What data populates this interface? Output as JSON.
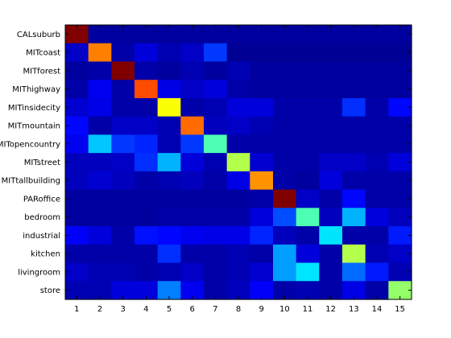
{
  "chart_data": {
    "type": "heatmap",
    "rows": [
      "CALsuburb",
      "MITcoast",
      "MITforest",
      "MIThighway",
      "MITinsidecity",
      "MITmountain",
      "MITopencountry",
      "MITstreet",
      "MITtallbuilding",
      "PARoffice",
      "bedroom",
      "industrial",
      "kitchen",
      "livingroom",
      "store"
    ],
    "columns": [
      "1",
      "2",
      "3",
      "4",
      "5",
      "6",
      "7",
      "8",
      "9",
      "10",
      "11",
      "12",
      "13",
      "14",
      "15"
    ],
    "values": [
      [
        1.0,
        0.03,
        0.03,
        0.03,
        0.03,
        0.03,
        0.03,
        0.03,
        0.03,
        0.03,
        0.03,
        0.03,
        0.03,
        0.03,
        0.03
      ],
      [
        0.07,
        0.75,
        0.04,
        0.09,
        0.05,
        0.07,
        0.18,
        0.02,
        0.02,
        0.02,
        0.02,
        0.02,
        0.02,
        0.02,
        0.02
      ],
      [
        0.03,
        0.04,
        1.0,
        0.04,
        0.03,
        0.05,
        0.03,
        0.05,
        0.03,
        0.03,
        0.03,
        0.03,
        0.03,
        0.03,
        0.03
      ],
      [
        0.04,
        0.11,
        0.04,
        0.8,
        0.1,
        0.07,
        0.09,
        0.04,
        0.03,
        0.03,
        0.03,
        0.03,
        0.03,
        0.03,
        0.03
      ],
      [
        0.08,
        0.1,
        0.04,
        0.04,
        0.62,
        0.04,
        0.05,
        0.09,
        0.09,
        0.04,
        0.04,
        0.04,
        0.17,
        0.04,
        0.13
      ],
      [
        0.13,
        0.04,
        0.07,
        0.07,
        0.05,
        0.77,
        0.06,
        0.07,
        0.05,
        0.04,
        0.04,
        0.04,
        0.04,
        0.04,
        0.04
      ],
      [
        0.11,
        0.32,
        0.18,
        0.16,
        0.05,
        0.18,
        0.45,
        0.04,
        0.04,
        0.04,
        0.04,
        0.04,
        0.04,
        0.04,
        0.04
      ],
      [
        0.06,
        0.06,
        0.07,
        0.17,
        0.3,
        0.09,
        0.05,
        0.55,
        0.08,
        0.04,
        0.04,
        0.07,
        0.07,
        0.05,
        0.09
      ],
      [
        0.06,
        0.08,
        0.06,
        0.04,
        0.05,
        0.06,
        0.04,
        0.1,
        0.73,
        0.04,
        0.03,
        0.09,
        0.04,
        0.04,
        0.04
      ],
      [
        0.03,
        0.03,
        0.03,
        0.03,
        0.03,
        0.03,
        0.03,
        0.03,
        0.04,
        1.0,
        0.07,
        0.04,
        0.13,
        0.04,
        0.04
      ],
      [
        0.03,
        0.03,
        0.03,
        0.03,
        0.04,
        0.04,
        0.04,
        0.04,
        0.09,
        0.2,
        0.45,
        0.06,
        0.3,
        0.09,
        0.06
      ],
      [
        0.12,
        0.09,
        0.04,
        0.14,
        0.13,
        0.11,
        0.1,
        0.1,
        0.16,
        0.06,
        0.04,
        0.35,
        0.04,
        0.04,
        0.15
      ],
      [
        0.04,
        0.04,
        0.04,
        0.04,
        0.17,
        0.04,
        0.04,
        0.05,
        0.04,
        0.28,
        0.09,
        0.04,
        0.55,
        0.05,
        0.07
      ],
      [
        0.07,
        0.05,
        0.05,
        0.04,
        0.05,
        0.07,
        0.04,
        0.05,
        0.08,
        0.28,
        0.35,
        0.04,
        0.23,
        0.15,
        0.05
      ],
      [
        0.05,
        0.05,
        0.09,
        0.09,
        0.25,
        0.11,
        0.04,
        0.06,
        0.12,
        0.04,
        0.05,
        0.04,
        0.1,
        0.04,
        0.52
      ]
    ],
    "colormap": "jet",
    "grid": false,
    "legend": "none"
  }
}
